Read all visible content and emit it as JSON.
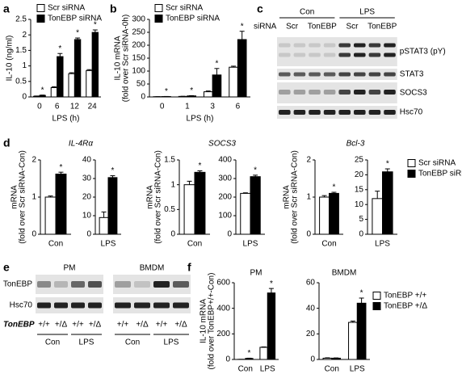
{
  "panel_labels": [
    "a",
    "b",
    "c",
    "d",
    "e",
    "f"
  ],
  "chart_data": [
    {
      "type": "bar",
      "series": [
        {
          "name": "Scr siRNA",
          "color": "#ffffff"
        },
        {
          "name": "TonEBP siRNA",
          "color": "#000000"
        }
      ],
      "subplots": [
        {
          "y_label": [
            "IL-10 (ng/ml)"
          ],
          "x_label": "LPS (h)",
          "categories": [
            "0",
            "6",
            "12",
            "24"
          ],
          "values": [
            [
              0.02,
              0.3,
              0.75,
              0.85
            ],
            [
              0.05,
              1.3,
              1.85,
              2.08
            ]
          ],
          "errors": [
            [
              0.01,
              0.03,
              0.03,
              0.03
            ],
            [
              0.01,
              0.1,
              0.05,
              0.08
            ]
          ],
          "ylim": [
            0,
            2.5
          ],
          "yticks": [
            0,
            0.5,
            1,
            1.5,
            2,
            2.5
          ],
          "annotations": [
            "*",
            "*",
            "*",
            "*"
          ]
        }
      ]
    },
    {
      "type": "bar",
      "series": [
        {
          "name": "Scr siRNA",
          "color": "#ffffff"
        },
        {
          "name": "TonEBP siRNA",
          "color": "#000000"
        }
      ],
      "subplots": [
        {
          "y_label": [
            "IL-10 mRNA",
            "(fold over Scr siRNA-0h)"
          ],
          "x_label": "LPS (h)",
          "categories": [
            "0",
            "1",
            "3",
            "6"
          ],
          "values": [
            [
              1,
              2,
              20,
              115
            ],
            [
              1.5,
              4,
              85,
              222
            ]
          ],
          "errors": [
            [
              0,
              0.5,
              3,
              4
            ],
            [
              0.3,
              1,
              25,
              32
            ]
          ],
          "ylim": [
            0,
            300
          ],
          "yticks": [
            0,
            50,
            100,
            150,
            200,
            250,
            300
          ],
          "annotations": [
            "*",
            "*",
            "*",
            "*"
          ]
        }
      ]
    },
    {
      "type": "bar",
      "series": [
        {
          "name": "Scr siRNA",
          "color": "#ffffff"
        },
        {
          "name": "TonEBP siRNA",
          "color": "#000000"
        }
      ],
      "subplots": [
        {
          "title": "IL-4Rα",
          "y_label": [
            "mRNA",
            "(fold over Scr siRNA-Con)"
          ],
          "categories": [
            "Con"
          ],
          "values": [
            [
              1.0
            ],
            [
              1.62
            ]
          ],
          "errors": [
            [
              0.03
            ],
            [
              0.05
            ]
          ],
          "ylim": [
            0,
            2
          ],
          "yticks": [
            0,
            1,
            2
          ],
          "annotations": [
            "*"
          ]
        },
        {
          "categories": [
            "LPS"
          ],
          "values": [
            [
              9
            ],
            [
              30.5
            ]
          ],
          "errors": [
            [
              3
            ],
            [
              1
            ]
          ],
          "ylim": [
            0,
            40
          ],
          "yticks": [
            0,
            10,
            20,
            30,
            40
          ],
          "annotations": [
            "*"
          ]
        },
        {
          "title": "SOCS3",
          "y_label": [
            "mRNA",
            "(fold over Scr siRNA-Con)"
          ],
          "categories": [
            "Con"
          ],
          "values": [
            [
              1.0
            ],
            [
              1.25
            ]
          ],
          "errors": [
            [
              0.07
            ],
            [
              0.03
            ]
          ],
          "ylim": [
            0,
            1.5
          ],
          "yticks": [
            0,
            0.5,
            1,
            1.5
          ],
          "annotations": [
            "*"
          ]
        },
        {
          "categories": [
            "LPS"
          ],
          "values": [
            [
              220
            ],
            [
              310
            ]
          ],
          "errors": [
            [
              3
            ],
            [
              8
            ]
          ],
          "ylim": [
            0,
            400
          ],
          "yticks": [
            0,
            100,
            200,
            300,
            400
          ],
          "annotations": [
            "*"
          ]
        },
        {
          "title": "Bcl-3",
          "y_label": [
            "mRNA",
            "(fold over Scr siRNA-Con)"
          ],
          "categories": [
            "Con"
          ],
          "values": [
            [
              1.0
            ],
            [
              1.1
            ]
          ],
          "errors": [
            [
              0.04
            ],
            [
              0.03
            ]
          ],
          "ylim": [
            0,
            2
          ],
          "yticks": [
            0,
            1,
            2
          ],
          "annotations": [
            "*"
          ]
        },
        {
          "categories": [
            "LPS"
          ],
          "values": [
            [
              12
            ],
            [
              21
            ]
          ],
          "errors": [
            [
              2.5
            ],
            [
              1
            ]
          ],
          "ylim": [
            0,
            25
          ],
          "yticks": [
            0,
            5,
            10,
            15,
            20,
            25
          ],
          "annotations": [
            "*"
          ]
        }
      ]
    },
    {
      "type": "bar",
      "series": [
        {
          "name": "TonEBP +/+",
          "color": "#ffffff"
        },
        {
          "name": "TonEBP +/Δ",
          "color": "#000000"
        }
      ],
      "subplots": [
        {
          "title": "PM",
          "y_label": [
            "IL-10 mRNA",
            "(fold over TonEBP+/+-Con)"
          ],
          "categories": [
            "Con",
            "LPS"
          ],
          "values": [
            [
              1,
              95
            ],
            [
              8,
              520
            ]
          ],
          "errors": [
            [
              0,
              3
            ],
            [
              2,
              35
            ]
          ],
          "ylim": [
            0,
            600
          ],
          "yticks": [
            0,
            200,
            400,
            600
          ],
          "annotations": [
            "*",
            "*"
          ]
        },
        {
          "title": "BMDM",
          "categories": [
            "Con",
            "LPS"
          ],
          "values": [
            [
              1,
              29
            ],
            [
              1,
              44
            ]
          ],
          "errors": [
            [
              0.3,
              1
            ],
            [
              0.2,
              4
            ]
          ],
          "ylim": [
            0,
            60
          ],
          "yticks": [
            0,
            20,
            40,
            60
          ],
          "annotations": [
            null,
            "*"
          ]
        }
      ]
    }
  ],
  "blot_c": {
    "header": [
      "Con",
      "LPS"
    ],
    "row_label": "siRNA",
    "lanes": [
      "Scr",
      "TonEBP",
      "Scr",
      "TonEBP"
    ],
    "bands": [
      "pSTAT3 (pY)",
      "STAT3",
      "SOCS3",
      "Hsc70"
    ]
  },
  "blot_e": {
    "groups": [
      "PM",
      "BMDM"
    ],
    "bands": [
      "TonEBP",
      "Hsc70"
    ],
    "genotype_label": "TonEBP",
    "genotypes": [
      "+/+",
      "+/Δ",
      "+/+",
      "+/Δ",
      "+/+",
      "+/Δ",
      "+/+",
      "+/Δ"
    ],
    "conditions": [
      "Con",
      "LPS",
      "Con",
      "LPS"
    ]
  }
}
